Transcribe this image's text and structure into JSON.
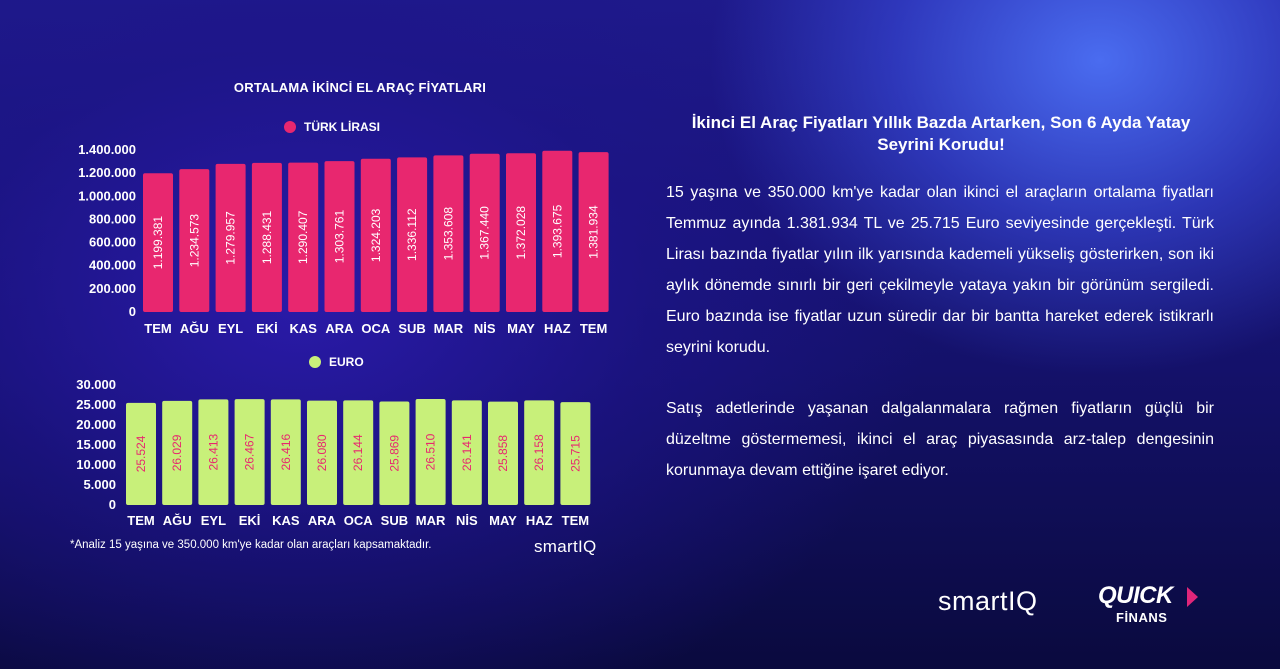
{
  "chart_data": [
    {
      "type": "bar",
      "title": "ORTALAMA İKİNCİ EL ARAÇ FİYATLARI",
      "legend": "TÜRK LİRASI",
      "color": "#e8276f",
      "label_color": "#ffffff",
      "categories": [
        "TEM",
        "AĞU",
        "EYL",
        "EKİ",
        "KAS",
        "ARA",
        "OCA",
        "SUB",
        "MAR",
        "NİS",
        "MAY",
        "HAZ",
        "TEM"
      ],
      "values": [
        1199381,
        1234573,
        1279957,
        1288431,
        1290407,
        1303761,
        1324203,
        1336112,
        1353608,
        1367440,
        1372028,
        1393675,
        1381934
      ],
      "value_labels": [
        "1.199.381",
        "1.234.573",
        "1.279.957",
        "1.288.431",
        "1.290.407",
        "1.303.761",
        "1.324.203",
        "1.336.112",
        "1.353.608",
        "1.367.440",
        "1.372.028",
        "1.393.675",
        "1.381.934"
      ],
      "yticks": [
        0,
        200000,
        400000,
        600000,
        800000,
        1000000,
        1200000,
        1400000
      ],
      "ytick_labels": [
        "0",
        "200.000",
        "400.000",
        "600.000",
        "800.000",
        "1.000.000",
        "1.200.000",
        "1.400.000"
      ],
      "ylim": [
        0,
        1400000
      ]
    },
    {
      "type": "bar",
      "legend": "EURO",
      "color": "#c8f07a",
      "label_color": "#e8276f",
      "categories": [
        "TEM",
        "AĞU",
        "EYL",
        "EKİ",
        "KAS",
        "ARA",
        "OCA",
        "SUB",
        "MAR",
        "NİS",
        "MAY",
        "HAZ",
        "TEM"
      ],
      "values": [
        25524,
        26029,
        26413,
        26467,
        26416,
        26080,
        26144,
        25869,
        26510,
        26141,
        25858,
        26158,
        25715
      ],
      "value_labels": [
        "25.524",
        "26.029",
        "26.413",
        "26.467",
        "26.416",
        "26.080",
        "26.144",
        "25.869",
        "26.510",
        "26.141",
        "25.858",
        "26.158",
        "25.715"
      ],
      "yticks": [
        0,
        5000,
        10000,
        15000,
        20000,
        25000,
        30000
      ],
      "ytick_labels": [
        "0",
        "5.000",
        "10.000",
        "15.000",
        "20.000",
        "25.000",
        "30.000"
      ],
      "ylim": [
        0,
        30000
      ]
    }
  ],
  "footnote": "*Analiz 15 yaşına ve 350.000 km'ye kadar olan araçları kapsamaktadır.",
  "brand_small": "smartIQ",
  "headline": "İkinci El Araç Fiyatları Yıllık Bazda Artarken, Son 6 Ayda Yatay Seyrini Korudu!",
  "paragraph1": "15 yaşına ve 350.000 km'ye kadar olan ikinci el araçların ortalama fiyatları Temmuz ayında 1.381.934 TL ve 25.715 Euro seviyesinde gerçekleşti. Türk Lirası bazında fiyatlar yılın ilk yarısında kademeli yükseliş gösterirken, son iki aylık dönemde sınırlı bir geri çekilmeyle yataya yakın bir görünüm sergiledi. Euro bazında ise fiyatlar uzun süredir dar bir bantta hareket ederek istikrarlı seyrini korudu.",
  "paragraph2": "Satış adetlerinde yaşanan dalgalanmalara rağmen fiyatların güçlü bir düzeltme göstermemesi, ikinci el araç piyasasında arz-talep dengesinin korunmaya devam ettiğine işaret ediyor.",
  "logos": {
    "smartiq": "smartIQ",
    "quick_top": "QUICK",
    "quick_bottom": "FİNANS"
  }
}
